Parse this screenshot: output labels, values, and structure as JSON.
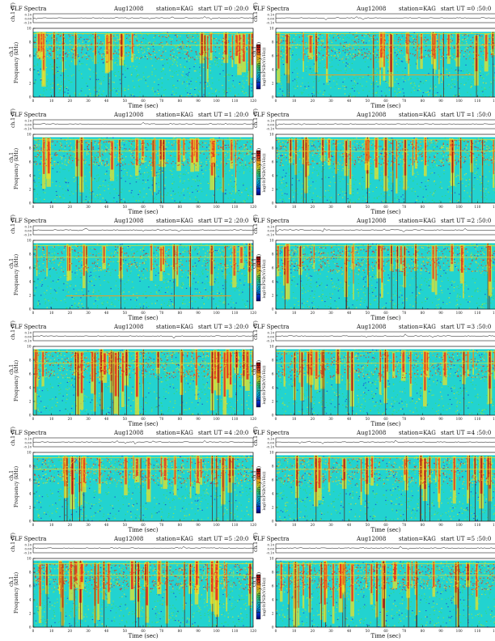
{
  "panel_text": {
    "prefix": "VLF Spectra",
    "date": "Aug12008",
    "station": "station=KAG",
    "start_prefix": "start  UT  ="
  },
  "axis_text": {
    "x_label": "Time  (sec)",
    "y_label": "Frequency  (kHz)",
    "ch_label": "ch.1",
    "volt_label": "(V)",
    "colorbar_label": "log10(PSD(V/√Hz))",
    "x_ticks": [
      "0",
      "10",
      "20",
      "30",
      "40",
      "50",
      "60",
      "70",
      "80",
      "90",
      "100",
      "110",
      "120"
    ],
    "y_ticks": [
      "0",
      "2",
      "4",
      "6",
      "8",
      "10"
    ],
    "volt_ticks": [
      "0.10",
      "0.00",
      "-0.10"
    ]
  },
  "chart_data": [
    {
      "type": "heatmap",
      "start": "0 :20:0",
      "xlim": [
        0,
        120
      ],
      "ylim": [
        0,
        10
      ],
      "x_label": "Time (sec)",
      "y_label": "Frequency (kHz)",
      "band_top_khz": 9.5,
      "intensity": "medium",
      "low_band_line_khz": null
    },
    {
      "type": "heatmap",
      "start": "0 :50:0",
      "xlim": [
        0,
        120
      ],
      "ylim": [
        0,
        10
      ],
      "x_label": "Time (sec)",
      "y_label": "Frequency (kHz)",
      "band_top_khz": 9.5,
      "intensity": "medium",
      "low_band_line_khz": 3.3
    },
    {
      "type": "heatmap",
      "start": "1 :20:0",
      "xlim": [
        0,
        120
      ],
      "ylim": [
        0,
        10
      ],
      "x_label": "Time (sec)",
      "y_label": "Frequency (kHz)",
      "band_top_khz": 9.6,
      "intensity": "medium",
      "low_band_line_khz": null
    },
    {
      "type": "heatmap",
      "start": "1 :50:0",
      "xlim": [
        0,
        120
      ],
      "ylim": [
        0,
        10
      ],
      "x_label": "Time (sec)",
      "y_label": "Frequency (kHz)",
      "band_top_khz": 9.6,
      "intensity": "medium",
      "low_band_line_khz": null
    },
    {
      "type": "heatmap",
      "start": "2 :20:0",
      "xlim": [
        0,
        120
      ],
      "ylim": [
        0,
        10
      ],
      "x_label": "Time (sec)",
      "y_label": "Frequency (kHz)",
      "band_top_khz": 9.6,
      "intensity": "low",
      "low_band_line_khz": 2.0
    },
    {
      "type": "heatmap",
      "start": "2 :50:0",
      "xlim": [
        0,
        120
      ],
      "ylim": [
        0,
        10
      ],
      "x_label": "Time (sec)",
      "y_label": "Frequency (kHz)",
      "band_top_khz": 9.6,
      "intensity": "medium",
      "low_band_line_khz": null
    },
    {
      "type": "heatmap",
      "start": "3 :20:0",
      "xlim": [
        0,
        120
      ],
      "ylim": [
        0,
        10
      ],
      "x_label": "Time (sec)",
      "y_label": "Frequency (kHz)",
      "band_top_khz": 9.6,
      "intensity": "high",
      "low_band_line_khz": null
    },
    {
      "type": "heatmap",
      "start": "3 :50:0",
      "xlim": [
        0,
        120
      ],
      "ylim": [
        0,
        10
      ],
      "x_label": "Time (sec)",
      "y_label": "Frequency (kHz)",
      "band_top_khz": 9.6,
      "intensity": "medium",
      "low_band_line_khz": null
    },
    {
      "type": "heatmap",
      "start": "4 :20:0",
      "xlim": [
        0,
        120
      ],
      "ylim": [
        0,
        10
      ],
      "x_label": "Time (sec)",
      "y_label": "Frequency (kHz)",
      "band_top_khz": 9.6,
      "intensity": "medium",
      "low_band_line_khz": null
    },
    {
      "type": "heatmap",
      "start": "4 :50:0",
      "xlim": [
        0,
        120
      ],
      "ylim": [
        0,
        10
      ],
      "x_label": "Time (sec)",
      "y_label": "Frequency (kHz)",
      "band_top_khz": 9.6,
      "intensity": "medium",
      "low_band_line_khz": null
    },
    {
      "type": "heatmap",
      "start": "5 :20:0",
      "xlim": [
        0,
        120
      ],
      "ylim": [
        0,
        10
      ],
      "x_label": "Time (sec)",
      "y_label": "Frequency (kHz)",
      "band_top_khz": 9.7,
      "intensity": "high",
      "low_band_line_khz": null
    },
    {
      "type": "heatmap",
      "start": "5 :50:0",
      "xlim": [
        0,
        120
      ],
      "ylim": [
        0,
        10
      ],
      "x_label": "Time (sec)",
      "y_label": "Frequency (kHz)",
      "band_top_khz": 9.7,
      "intensity": "high",
      "low_band_line_khz": null
    }
  ],
  "colors": {
    "background": "#22d3d0",
    "palette": [
      "#1a3fd6",
      "#22d3d0",
      "#3ad66a",
      "#9be63a",
      "#e8e02a",
      "#f49a1c",
      "#e82a1c",
      "#5a0f0f"
    ],
    "colorbar": [
      "#000066",
      "#0033cc",
      "#00aaee",
      "#22d3d0",
      "#3ad66a",
      "#e8e02a",
      "#f49a1c",
      "#e82a1c",
      "#8b0000"
    ]
  }
}
